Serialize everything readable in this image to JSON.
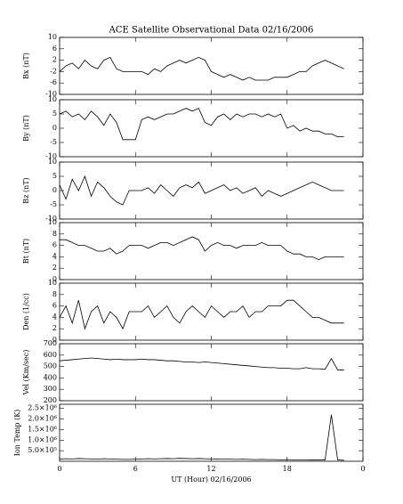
{
  "chart_data": [
    {
      "type": "line",
      "title": "ACE Satellite Observational Data   02/16/2006",
      "ylabel": "Bx (nT)",
      "color": "#000000",
      "x": [
        0,
        0.5,
        1,
        1.5,
        2,
        2.5,
        3,
        3.5,
        4,
        4.5,
        5,
        5.5,
        6,
        6.5,
        7,
        7.5,
        8,
        8.5,
        9,
        9.5,
        10,
        10.5,
        11,
        11.5,
        12,
        12.5,
        13,
        13.5,
        14,
        14.5,
        15,
        15.5,
        16,
        16.5,
        17,
        17.5,
        18,
        18.5,
        19,
        19.5,
        20,
        20.5,
        21,
        21.5,
        22,
        22.5
      ],
      "values": [
        -2,
        0,
        1,
        -1,
        2,
        0,
        -1,
        2,
        3,
        -1,
        -2,
        -2,
        -2,
        -2,
        -3,
        -1,
        -2,
        0,
        1,
        2,
        1,
        2,
        3,
        2,
        -2,
        -3,
        -4,
        -3,
        -4,
        -5,
        -4,
        -5,
        -5,
        -5,
        -4,
        -4,
        -4,
        -3,
        -2,
        -2,
        0,
        1,
        2,
        1,
        0,
        -1
      ],
      "xlim": [
        0,
        24
      ],
      "xticks": [
        0,
        6,
        12,
        18,
        {
          "value": 24,
          "label": "0"
        }
      ],
      "ylim": [
        -10,
        10
      ],
      "yticks": [
        -10,
        -6,
        -2,
        2,
        6,
        10
      ]
    },
    {
      "type": "line",
      "ylabel": "By (nT)",
      "color": "#000000",
      "x": [
        0,
        0.5,
        1,
        1.5,
        2,
        2.5,
        3,
        3.5,
        4,
        4.5,
        5,
        5.5,
        6,
        6.5,
        7,
        7.5,
        8,
        8.5,
        9,
        9.5,
        10,
        10.5,
        11,
        11.5,
        12,
        12.5,
        13,
        13.5,
        14,
        14.5,
        15,
        15.5,
        16,
        16.5,
        17,
        17.5,
        18,
        18.5,
        19,
        19.5,
        20,
        20.5,
        21,
        21.5,
        22,
        22.5
      ],
      "values": [
        5,
        6,
        4,
        5,
        3,
        6,
        4,
        1,
        5,
        2,
        -4,
        -4,
        -4,
        3,
        4,
        3,
        4,
        5,
        5,
        6,
        7,
        6,
        7,
        2,
        1,
        4,
        5,
        3,
        5,
        4,
        5,
        5,
        4,
        5,
        4,
        5,
        0,
        1,
        -1,
        0,
        -1,
        -1,
        -2,
        -2,
        -3,
        -3
      ],
      "xlim": [
        0,
        24
      ],
      "xticks": [
        0,
        6,
        12,
        18,
        {
          "value": 24,
          "label": "0"
        }
      ],
      "ylim": [
        -10,
        10
      ],
      "yticks": [
        -10,
        -5,
        0,
        5,
        10
      ]
    },
    {
      "type": "line",
      "ylabel": "Bz (nT)",
      "color": "#000000",
      "x": [
        0,
        0.5,
        1,
        1.5,
        2,
        2.5,
        3,
        3.5,
        4,
        4.5,
        5,
        5.5,
        6,
        6.5,
        7,
        7.5,
        8,
        8.5,
        9,
        9.5,
        10,
        10.5,
        11,
        11.5,
        12,
        12.5,
        13,
        13.5,
        14,
        14.5,
        15,
        15.5,
        16,
        16.5,
        17,
        17.5,
        18,
        18.5,
        19,
        19.5,
        20,
        20.5,
        21,
        21.5,
        22,
        22.5
      ],
      "values": [
        2,
        -3,
        4,
        0,
        5,
        -2,
        3,
        1,
        -2,
        -4,
        -5,
        0,
        0,
        0,
        1,
        -1,
        2,
        0,
        -2,
        1,
        2,
        1,
        3,
        -1,
        0,
        1,
        2,
        0,
        1,
        -1,
        0,
        1,
        -2,
        0,
        -1,
        -2,
        -1,
        0,
        1,
        2,
        3,
        2,
        1,
        0,
        0,
        0
      ],
      "xlim": [
        0,
        24
      ],
      "xticks": [
        0,
        6,
        12,
        18,
        {
          "value": 24,
          "label": "0"
        }
      ],
      "ylim": [
        -10,
        10
      ],
      "yticks": [
        -10,
        -5,
        0,
        5,
        10
      ]
    },
    {
      "type": "line",
      "ylabel": "Bt (nT)",
      "color": "#000000",
      "x": [
        0,
        0.5,
        1,
        1.5,
        2,
        2.5,
        3,
        3.5,
        4,
        4.5,
        5,
        5.5,
        6,
        6.5,
        7,
        7.5,
        8,
        8.5,
        9,
        9.5,
        10,
        10.5,
        11,
        11.5,
        12,
        12.5,
        13,
        13.5,
        14,
        14.5,
        15,
        15.5,
        16,
        16.5,
        17,
        17.5,
        18,
        18.5,
        19,
        19.5,
        20,
        20.5,
        21,
        21.5,
        22,
        22.5
      ],
      "values": [
        7,
        7,
        6.5,
        6,
        6,
        5.5,
        5,
        5,
        5.5,
        4.5,
        5,
        6,
        6,
        6,
        5.5,
        6,
        6.5,
        6.5,
        6,
        6.5,
        7,
        7.5,
        7,
        5,
        6,
        6.5,
        6,
        6,
        5.5,
        6,
        6,
        6,
        6.5,
        6,
        6,
        6,
        5,
        4.5,
        4.5,
        4,
        4,
        3.5,
        4,
        4,
        4,
        4
      ],
      "xlim": [
        0,
        24
      ],
      "xticks": [
        0,
        6,
        12,
        18,
        {
          "value": 24,
          "label": "0"
        }
      ],
      "ylim": [
        0,
        10
      ],
      "yticks": [
        0,
        2,
        4,
        6,
        8,
        10
      ]
    },
    {
      "type": "line",
      "ylabel": "Den (1/cc)",
      "color": "#000000",
      "x": [
        0,
        0.5,
        1,
        1.5,
        2,
        2.5,
        3,
        3.5,
        4,
        4.5,
        5,
        5.5,
        6,
        6.5,
        7,
        7.5,
        8,
        8.5,
        9,
        9.5,
        10,
        10.5,
        11,
        11.5,
        12,
        12.5,
        13,
        13.5,
        14,
        14.5,
        15,
        15.5,
        16,
        16.5,
        17,
        17.5,
        18,
        18.5,
        19,
        19.5,
        20,
        20.5,
        21,
        21.5,
        22,
        22.5
      ],
      "values": [
        4,
        6,
        3,
        7,
        2,
        5,
        6,
        3,
        5,
        4,
        2,
        5,
        5,
        5,
        6,
        4,
        5,
        6,
        4,
        3,
        5,
        6,
        5,
        4,
        6,
        5,
        4,
        5,
        5,
        6,
        4,
        5,
        5,
        6,
        6,
        6,
        7,
        7,
        6,
        5,
        4,
        4,
        3.5,
        3,
        3,
        3
      ],
      "xlim": [
        0,
        24
      ],
      "xticks": [
        0,
        6,
        12,
        18,
        {
          "value": 24,
          "label": "0"
        }
      ],
      "ylim": [
        0,
        10
      ],
      "yticks": [
        0,
        2,
        4,
        6,
        8,
        10
      ]
    },
    {
      "type": "line",
      "ylabel": "Vel (Km/sec)",
      "color": "#000000",
      "x": [
        0,
        0.5,
        1,
        1.5,
        2,
        2.5,
        3,
        3.5,
        4,
        4.5,
        5,
        5.5,
        6,
        6.5,
        7,
        7.5,
        8,
        8.5,
        9,
        9.5,
        10,
        10.5,
        11,
        11.5,
        12,
        12.5,
        13,
        13.5,
        14,
        14.5,
        15,
        15.5,
        16,
        16.5,
        17,
        17.5,
        18,
        18.5,
        19,
        19.5,
        20,
        20.5,
        21,
        21.5,
        22,
        22.5
      ],
      "values": [
        550,
        555,
        560,
        565,
        570,
        575,
        570,
        565,
        560,
        565,
        560,
        560,
        560,
        565,
        560,
        560,
        555,
        550,
        550,
        545,
        540,
        540,
        535,
        540,
        535,
        530,
        525,
        520,
        515,
        510,
        505,
        500,
        495,
        490,
        490,
        485,
        485,
        480,
        480,
        490,
        480,
        480,
        475,
        570,
        470,
        470
      ],
      "xlim": [
        0,
        24
      ],
      "xticks": [
        0,
        6,
        12,
        18,
        {
          "value": 24,
          "label": "0"
        }
      ],
      "ylim": [
        200,
        700
      ],
      "yticks": [
        200,
        300,
        400,
        500,
        600,
        700
      ]
    },
    {
      "type": "line",
      "ylabel": "Ion Temp (K)",
      "xlabel": "UT (Hour)  02/16/2006",
      "color": "#000000",
      "x": [
        0,
        0.5,
        1,
        1.5,
        2,
        2.5,
        3,
        3.5,
        4,
        4.5,
        5,
        5.5,
        6,
        6.5,
        7,
        7.5,
        8,
        8.5,
        9,
        9.5,
        10,
        10.5,
        11,
        11.5,
        12,
        12.5,
        13,
        13.5,
        14,
        14.5,
        15,
        15.5,
        16,
        16.5,
        17,
        17.5,
        18,
        18.5,
        19,
        19.5,
        20,
        20.5,
        21,
        21.5,
        22,
        22.5
      ],
      "values": [
        100000,
        120000,
        110000,
        130000,
        120000,
        110000,
        100000,
        120000,
        110000,
        100000,
        90000,
        90000,
        100000,
        110000,
        120000,
        110000,
        120000,
        130000,
        120000,
        140000,
        130000,
        120000,
        130000,
        120000,
        100000,
        110000,
        100000,
        100000,
        90000,
        100000,
        90000,
        80000,
        90000,
        80000,
        80000,
        70000,
        80000,
        70000,
        70000,
        70000,
        60000,
        70000,
        60000,
        2200000,
        60000,
        50000
      ],
      "xlim": [
        0,
        24
      ],
      "xticks": [
        0,
        6,
        12,
        18,
        {
          "value": 24,
          "label": "0"
        }
      ],
      "ylim": [
        0,
        2700000
      ],
      "yticks": [
        {
          "value": 500000,
          "label": "5.0×10⁵"
        },
        {
          "value": 1000000,
          "label": "1.0×10⁶"
        },
        {
          "value": 1500000,
          "label": "1.5×10⁶"
        },
        {
          "value": 2000000,
          "label": "2.0×10⁶"
        },
        {
          "value": 2500000,
          "label": "2.5×10⁶"
        }
      ]
    }
  ]
}
